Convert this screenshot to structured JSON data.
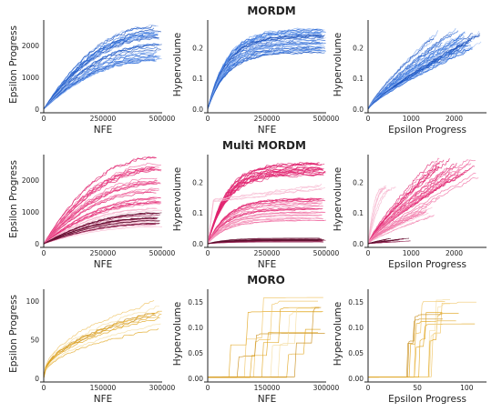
{
  "row_titles": [
    "MORDM",
    "Multi MORDM",
    "MORO"
  ],
  "colors": {
    "mordm": [
      "#1f5fd1",
      "#3d7be0",
      "#7ea8ee",
      "#a9c4f5",
      "#1a4fb8"
    ],
    "multi": [
      "#e0226e",
      "#f06aa0",
      "#f7b6cf",
      "#8a1545",
      "#5a0d2c"
    ],
    "moro": [
      "#e0a31a",
      "#eec15c",
      "#f5dc9c",
      "#c78a10"
    ]
  },
  "chart_data": [
    {
      "type": "line",
      "row": 0,
      "col": 0,
      "xlabel": "NFE",
      "ylabel": "Epsilon Progress",
      "xlim": [
        0,
        500000
      ],
      "ylim": [
        0,
        2800
      ],
      "xticks": [
        0,
        250000,
        500000
      ],
      "xticklabels": [
        "0",
        "250000",
        "500000"
      ],
      "yticks": [
        0,
        1000,
        2000
      ],
      "yticklabels": [
        "0",
        "1000",
        "2000"
      ],
      "series": [
        {
          "shape": "sat",
          "count": 40,
          "xmax": 500000,
          "ymin": 1500,
          "ymax": 2600,
          "palette": "mordm"
        }
      ]
    },
    {
      "type": "line",
      "row": 0,
      "col": 1,
      "xlabel": "NFE",
      "ylabel": "Hypervolume",
      "xlim": [
        0,
        500000
      ],
      "ylim": [
        0,
        0.29
      ],
      "xticks": [
        0,
        250000,
        500000
      ],
      "xticklabels": [
        "0",
        "250000",
        "500000"
      ],
      "yticks": [
        0,
        0.1,
        0.2
      ],
      "yticklabels": [
        "0.0",
        "0.1",
        "0.2"
      ],
      "series": [
        {
          "shape": "fast",
          "count": 40,
          "xmax": 500000,
          "ymin": 0.18,
          "ymax": 0.26,
          "palette": "mordm"
        }
      ]
    },
    {
      "type": "line",
      "row": 0,
      "col": 2,
      "xlabel": "Epsilon Progress",
      "ylabel": "Hypervolume",
      "xlim": [
        0,
        2750
      ],
      "ylim": [
        0,
        0.29
      ],
      "xticks": [
        0,
        1000,
        2000
      ],
      "xticklabels": [
        "0",
        "1000",
        "2000"
      ],
      "yticks": [
        0,
        0.1,
        0.2
      ],
      "yticklabels": [
        "0.0",
        "0.1",
        "0.2"
      ],
      "series": [
        {
          "shape": "lin",
          "count": 40,
          "xmin": 1500,
          "xmax": 2650,
          "ymin": 0.19,
          "ymax": 0.26,
          "palette": "mordm"
        }
      ]
    },
    {
      "type": "line",
      "row": 1,
      "col": 0,
      "xlabel": "NFE",
      "ylabel": "Epsilon Progress",
      "xlim": [
        0,
        500000
      ],
      "ylim": [
        0,
        2800
      ],
      "xticks": [
        0,
        250000,
        500000
      ],
      "xticklabels": [
        "0",
        "250000",
        "500000"
      ],
      "yticks": [
        0,
        1000,
        2000
      ],
      "yticklabels": [
        "0",
        "1000",
        "2000"
      ],
      "series": [
        {
          "shape": "sat",
          "count": 30,
          "xmax": 500000,
          "ymin": 1200,
          "ymax": 2700,
          "palette": "multi",
          "shades": [
            0,
            1
          ]
        },
        {
          "shape": "sat",
          "count": 15,
          "xmax": 500000,
          "ymin": 450,
          "ymax": 1100,
          "palette": "multi",
          "shades": [
            2
          ]
        },
        {
          "shape": "sat",
          "count": 15,
          "xmax": 500000,
          "ymin": 600,
          "ymax": 1000,
          "palette": "multi",
          "shades": [
            3,
            4
          ]
        }
      ]
    },
    {
      "type": "line",
      "row": 1,
      "col": 1,
      "xlabel": "NFE",
      "ylabel": "Hypervolume",
      "xlim": [
        0,
        500000
      ],
      "ylim": [
        0,
        0.29
      ],
      "xticks": [
        0,
        250000,
        500000
      ],
      "xticklabels": [
        "0",
        "250000",
        "500000"
      ],
      "yticks": [
        0,
        0.1,
        0.2
      ],
      "yticklabels": [
        "0.0",
        "0.1",
        "0.2"
      ],
      "series": [
        {
          "shape": "fast",
          "count": 18,
          "xmax": 500000,
          "ymin": 0.22,
          "ymax": 0.26,
          "palette": "multi",
          "shades": [
            0
          ]
        },
        {
          "shape": "fast",
          "count": 14,
          "xmax": 500000,
          "ymin": 0.11,
          "ymax": 0.15,
          "palette": "multi",
          "shades": [
            0,
            1
          ]
        },
        {
          "shape": "fast",
          "count": 14,
          "xmax": 500000,
          "ymin": 0.07,
          "ymax": 0.11,
          "palette": "multi",
          "shades": [
            1,
            2
          ]
        },
        {
          "shape": "flat",
          "count": 4,
          "xmax": 500000,
          "ymin": 0.17,
          "ymax": 0.19,
          "palette": "multi",
          "shades": [
            2
          ]
        },
        {
          "shape": "fast",
          "count": 12,
          "xmax": 500000,
          "ymin": 0.005,
          "ymax": 0.02,
          "palette": "multi",
          "shades": [
            3,
            4
          ]
        }
      ]
    },
    {
      "type": "line",
      "row": 1,
      "col": 2,
      "xlabel": "Epsilon Progress",
      "ylabel": "Hypervolume",
      "xlim": [
        0,
        2750
      ],
      "ylim": [
        0,
        0.29
      ],
      "xticks": [
        0,
        1000,
        2000
      ],
      "xticklabels": [
        "0",
        "1000",
        "2000"
      ],
      "yticks": [
        0,
        0.1,
        0.2
      ],
      "yticklabels": [
        "0.0",
        "0.1",
        "0.2"
      ],
      "series": [
        {
          "shape": "lin",
          "count": 25,
          "xmin": 1500,
          "xmax": 2700,
          "ymin": 0.2,
          "ymax": 0.28,
          "palette": "multi",
          "shades": [
            0,
            1
          ]
        },
        {
          "shape": "lin",
          "count": 15,
          "xmin": 900,
          "xmax": 1800,
          "ymin": 0.09,
          "ymax": 0.16,
          "palette": "multi",
          "shades": [
            1,
            2
          ]
        },
        {
          "shape": "sat",
          "count": 6,
          "xmin": 300,
          "xmax": 650,
          "ymin": 0.17,
          "ymax": 0.19,
          "palette": "multi",
          "shades": [
            2
          ]
        },
        {
          "shape": "lin",
          "count": 12,
          "xmin": 400,
          "xmax": 1000,
          "ymin": 0.005,
          "ymax": 0.02,
          "palette": "multi",
          "shades": [
            3,
            4
          ]
        }
      ]
    },
    {
      "type": "line",
      "row": 2,
      "col": 0,
      "xlabel": "NFE",
      "ylabel": "Epsilon Progress",
      "xlim": [
        0,
        300000
      ],
      "ylim": [
        0,
        115
      ],
      "xticks": [
        0,
        150000,
        300000
      ],
      "xticklabels": [
        "0",
        "150000",
        "300000"
      ],
      "yticks": [
        0,
        50,
        100
      ],
      "yticklabels": [
        "0",
        "50",
        "100"
      ],
      "series": [
        {
          "shape": "stepsat",
          "count": 10,
          "xmax": 300000,
          "ymin": 60,
          "ymax": 110,
          "palette": "moro"
        }
      ]
    },
    {
      "type": "line",
      "row": 2,
      "col": 1,
      "xlabel": "NFE",
      "ylabel": "Hypervolume",
      "xlim": [
        0,
        300000
      ],
      "ylim": [
        0,
        0.175
      ],
      "xticks": [
        0,
        150000,
        300000
      ],
      "xticklabels": [
        "0",
        "150000",
        "300000"
      ],
      "yticks": [
        0,
        0.05,
        0.1,
        0.15
      ],
      "yticklabels": [
        "0.00",
        "0.05",
        "0.10",
        "0.15"
      ],
      "series": [
        {
          "shape": "jump",
          "count": 10,
          "xmax": 300000,
          "ymin": 0.07,
          "ymax": 0.165,
          "palette": "moro"
        }
      ]
    },
    {
      "type": "line",
      "row": 2,
      "col": 2,
      "xlabel": "Epsilon Progress",
      "ylabel": "Hypervolume",
      "xlim": [
        0,
        120
      ],
      "ylim": [
        0,
        0.175
      ],
      "xticks": [
        0,
        50,
        100
      ],
      "xticklabels": [
        "0",
        "50",
        "100"
      ],
      "yticks": [
        0,
        0.05,
        0.1,
        0.15
      ],
      "yticklabels": [
        "0.00",
        "0.05",
        "0.10",
        "0.15"
      ],
      "series": [
        {
          "shape": "jumplin",
          "count": 10,
          "xmin": 75,
          "xmax": 110,
          "ymin": 0.1,
          "ymax": 0.165,
          "palette": "moro"
        }
      ]
    }
  ]
}
